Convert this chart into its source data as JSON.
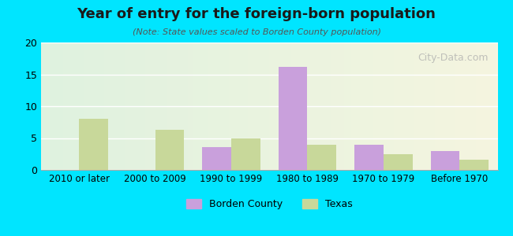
{
  "title": "Year of entry for the foreign-born population",
  "subtitle": "(Note: State values scaled to Borden County population)",
  "categories": [
    "2010 or later",
    "2000 to 2009",
    "1990 to 1999",
    "1980 to 1989",
    "1970 to 1979",
    "Before 1970"
  ],
  "borden_county": [
    0,
    0,
    3.6,
    16.2,
    3.9,
    3.0
  ],
  "texas": [
    8.0,
    6.3,
    5.0,
    4.0,
    2.5,
    1.6
  ],
  "borden_color": "#c9a0dc",
  "texas_color": "#c8d89a",
  "background_outer": "#00e5ff",
  "background_inner_left": "#e8f5e9",
  "background_inner_right": "#f5f5dc",
  "ylim": [
    0,
    20
  ],
  "yticks": [
    0,
    5,
    10,
    15,
    20
  ],
  "bar_width": 0.38,
  "legend_labels": [
    "Borden County",
    "Texas"
  ],
  "watermark": "City-Data.com"
}
